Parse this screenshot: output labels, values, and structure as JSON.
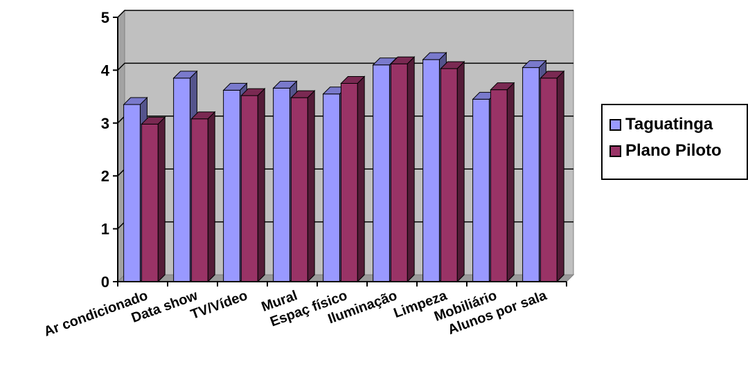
{
  "chart_data": {
    "type": "bar",
    "categories": [
      "Ar condicionado",
      "Data show",
      "TV/Vídeo",
      "Mural",
      "Espaç físico",
      "Iluminação",
      "Limpeza",
      "Mobiliário",
      "Alunos por sala"
    ],
    "series": [
      {
        "name": "Taguatinga",
        "values": [
          3.35,
          3.85,
          3.62,
          3.66,
          3.55,
          4.1,
          4.2,
          3.45,
          4.05
        ],
        "color": "#9999ff"
      },
      {
        "name": "Plano Piloto",
        "values": [
          2.98,
          3.08,
          3.52,
          3.48,
          3.75,
          4.12,
          4.03,
          3.63,
          3.85
        ],
        "color": "#993366"
      }
    ],
    "ylim": [
      0,
      5
    ],
    "yticks": [
      0,
      1,
      2,
      3,
      4,
      5
    ],
    "grid": true,
    "legend": "right",
    "colors": {
      "plot_background": "#c0c0c0",
      "gridline": "#000000",
      "bar_edge": "#000000"
    }
  }
}
